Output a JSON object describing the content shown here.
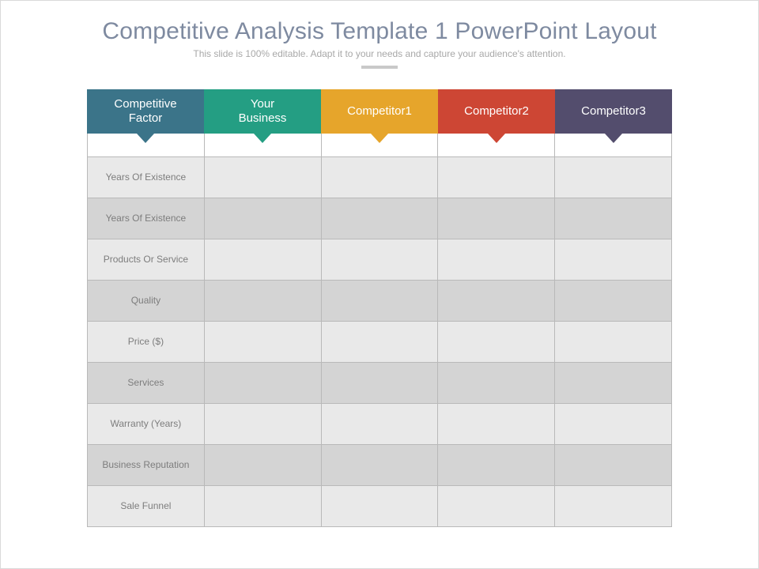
{
  "title": {
    "text": "Competitive Analysis Template 1 PowerPoint Layout",
    "color": "#7e8aa0",
    "fontsize": 30
  },
  "subtitle": {
    "text": "This slide is 100% editable. Adapt it to your needs and capture your audience's attention.",
    "color": "#a8a8a8",
    "fontsize": 12
  },
  "divider_color": "#c9c9c9",
  "table": {
    "header_fontsize": 15,
    "columns": [
      {
        "label": "Competitive\nFactor",
        "bg": "#3b7489"
      },
      {
        "label": "Your\nBusiness",
        "bg": "#249e83"
      },
      {
        "label": "Competitor1",
        "bg": "#e6a52b"
      },
      {
        "label": "Competitor2",
        "bg": "#cd4634"
      },
      {
        "label": "Competitor3",
        "bg": "#534d6d"
      }
    ],
    "rows": [
      {
        "label": "Years Of Existence"
      },
      {
        "label": "Years Of Existence"
      },
      {
        "label": "Products Or Service"
      },
      {
        "label": "Quality"
      },
      {
        "label": "Price ($)"
      },
      {
        "label": "Services"
      },
      {
        "label": "Warranty (Years)"
      },
      {
        "label": "Business Reputation"
      },
      {
        "label": "Sale Funnel"
      }
    ],
    "row_bg_even": "#e9e9e9",
    "row_bg_odd": "#d4d4d4",
    "border_color": "#b9b9b9",
    "label_color": "#7d7d7d",
    "label_fontsize": 12
  }
}
